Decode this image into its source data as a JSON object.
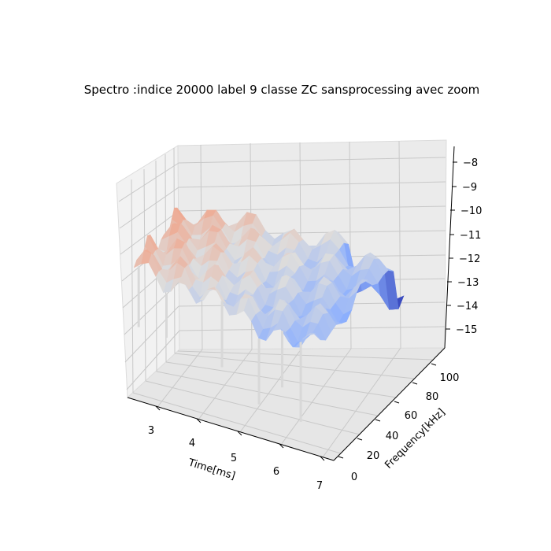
{
  "chart_data": {
    "type": "surface",
    "title": "Spectro :indice 20000 label 9 classe ZC sansprocessing avec zoom",
    "xlabel": "Time[ms]",
    "ylabel": "Frequency[kHz]",
    "zlabel": "",
    "xlim": [
      2.5,
      7.0
    ],
    "ylim": [
      0,
      110
    ],
    "zlim": [
      -15.5,
      -7.7
    ],
    "x_ticks": [
      "3",
      "4",
      "5",
      "6",
      "7"
    ],
    "y_ticks": [
      "0",
      "20",
      "40",
      "60",
      "80",
      "100"
    ],
    "z_ticks": [
      "−8",
      "−9",
      "−10",
      "−11",
      "−12",
      "−13",
      "−14",
      "−15"
    ],
    "colormap": "coolwarm",
    "grid": true
  }
}
